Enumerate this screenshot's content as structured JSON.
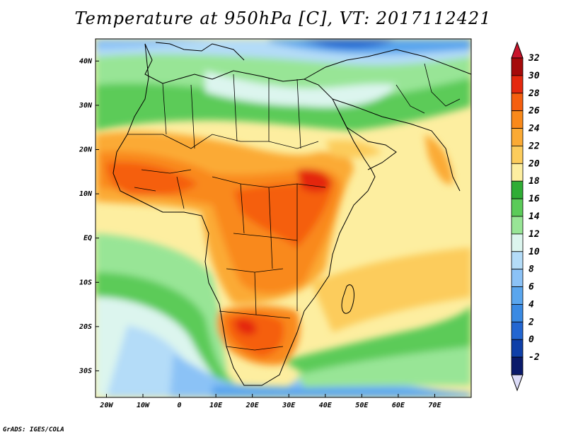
{
  "title": "Temperature at 950hPa [C], VT: 2017112421",
  "credit": "GrADS: IGES/COLA",
  "map": {
    "lat_labels": [
      "40N",
      "30N",
      "20N",
      "10N",
      "EQ",
      "10S",
      "20S",
      "30S"
    ],
    "lon_labels": [
      "20W",
      "10W",
      "0",
      "10E",
      "20E",
      "30E",
      "40E",
      "50E",
      "60E",
      "70E"
    ],
    "lat_range": [
      -36,
      45
    ],
    "lon_range": [
      -23,
      80
    ]
  },
  "colorbar": {
    "labels": [
      "32",
      "30",
      "28",
      "26",
      "24",
      "22",
      "20",
      "18",
      "16",
      "14",
      "12",
      "10",
      "8",
      "6",
      "4",
      "2",
      "0",
      "-2"
    ],
    "colors": [
      "#a50a0a",
      "#e4280e",
      "#f55f0f",
      "#f9891a",
      "#fbaa34",
      "#fccc5c",
      "#fdeea0",
      "#2fad35",
      "#5bcb59",
      "#98e596",
      "#dcf5ee",
      "#b4dcf8",
      "#8bc2f6",
      "#5aa6ee",
      "#3a8ae3",
      "#2366d1",
      "#0f3fa8",
      "#0a1a6a"
    ],
    "min_color": "#dcdcf8",
    "max_color": "#c8142b"
  }
}
